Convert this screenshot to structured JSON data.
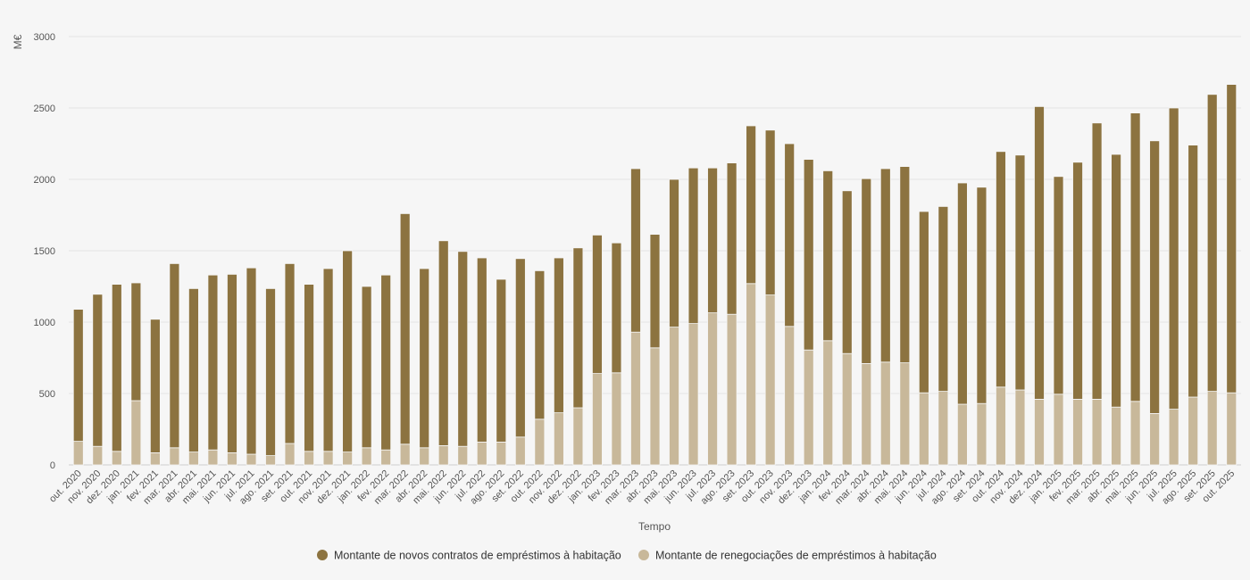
{
  "chart_data": {
    "type": "bar",
    "stacked": true,
    "title": "",
    "xlabel": "Tempo",
    "ylabel": "M€",
    "ylim": [
      0,
      3000
    ],
    "yticks": [
      0,
      500,
      1000,
      1500,
      2000,
      2500,
      3000
    ],
    "grid": true,
    "legend_position": "bottom",
    "categories": [
      "out. 2020",
      "nov. 2020",
      "dez. 2020",
      "jan. 2021",
      "fev. 2021",
      "mar. 2021",
      "abr. 2021",
      "mai. 2021",
      "jun. 2021",
      "jul. 2021",
      "ago. 2021",
      "set. 2021",
      "out. 2021",
      "nov. 2021",
      "dez. 2021",
      "jan. 2022",
      "fev. 2022",
      "mar. 2022",
      "abr. 2022",
      "mai. 2022",
      "jun. 2022",
      "jul. 2022",
      "ago. 2022",
      "set. 2022",
      "out. 2022",
      "nov. 2022",
      "dez. 2022",
      "jan. 2023",
      "fev. 2023",
      "mar. 2023",
      "abr. 2023",
      "mai. 2023",
      "jun. 2023",
      "jul. 2023",
      "ago. 2023",
      "set. 2023",
      "out. 2023",
      "nov. 2023",
      "dez. 2023",
      "jan. 2024",
      "fev. 2024",
      "mar. 2024",
      "abr. 2024",
      "mai. 2024",
      "jun. 2024",
      "jul. 2024",
      "ago. 2024",
      "set. 2024",
      "out. 2024",
      "nov. 2024",
      "dez. 2024",
      "jan. 2025",
      "fev. 2025",
      "mar. 2025",
      "abr. 2025",
      "mai. 2025",
      "jun. 2025",
      "jul. 2025",
      "ago. 2025",
      "set. 2025",
      "out. 2025"
    ],
    "series": [
      {
        "name": "Montante de renegociações de empréstimos à habitação",
        "color": "#c8b89a",
        "values": [
          165,
          130,
          95,
          450,
          85,
          120,
          90,
          105,
          85,
          75,
          65,
          150,
          95,
          95,
          90,
          120,
          105,
          145,
          120,
          135,
          130,
          160,
          160,
          195,
          320,
          365,
          400,
          640,
          645,
          930,
          820,
          965,
          990,
          1065,
          1055,
          1270,
          1190,
          970,
          805,
          870,
          780,
          710,
          720,
          715,
          505,
          515,
          425,
          430,
          545,
          525,
          460,
          495,
          460,
          460,
          405,
          445,
          360,
          390,
          475,
          515,
          505
        ]
      },
      {
        "name": "Montante de novos contratos de empréstimos à habitação",
        "color": "#8c7340",
        "values": [
          925,
          1065,
          1170,
          825,
          935,
          1290,
          1145,
          1225,
          1250,
          1305,
          1170,
          1260,
          1170,
          1280,
          1410,
          1130,
          1225,
          1615,
          1255,
          1435,
          1365,
          1290,
          1140,
          1250,
          1040,
          1085,
          1120,
          970,
          910,
          1145,
          795,
          1035,
          1090,
          1015,
          1060,
          1105,
          1155,
          1280,
          1335,
          1190,
          1140,
          1295,
          1355,
          1375,
          1270,
          1295,
          1550,
          1515,
          1650,
          1645,
          2050,
          1525,
          1660,
          1935,
          1770,
          2020,
          1910,
          2110,
          1765,
          2080,
          2160
        ]
      }
    ],
    "legend": [
      {
        "label": "Montante de novos contratos de empréstimos à habitação",
        "color": "#8c7340"
      },
      {
        "label": "Montante de renegociações de empréstimos à habitação",
        "color": "#c8b89a"
      }
    ]
  }
}
